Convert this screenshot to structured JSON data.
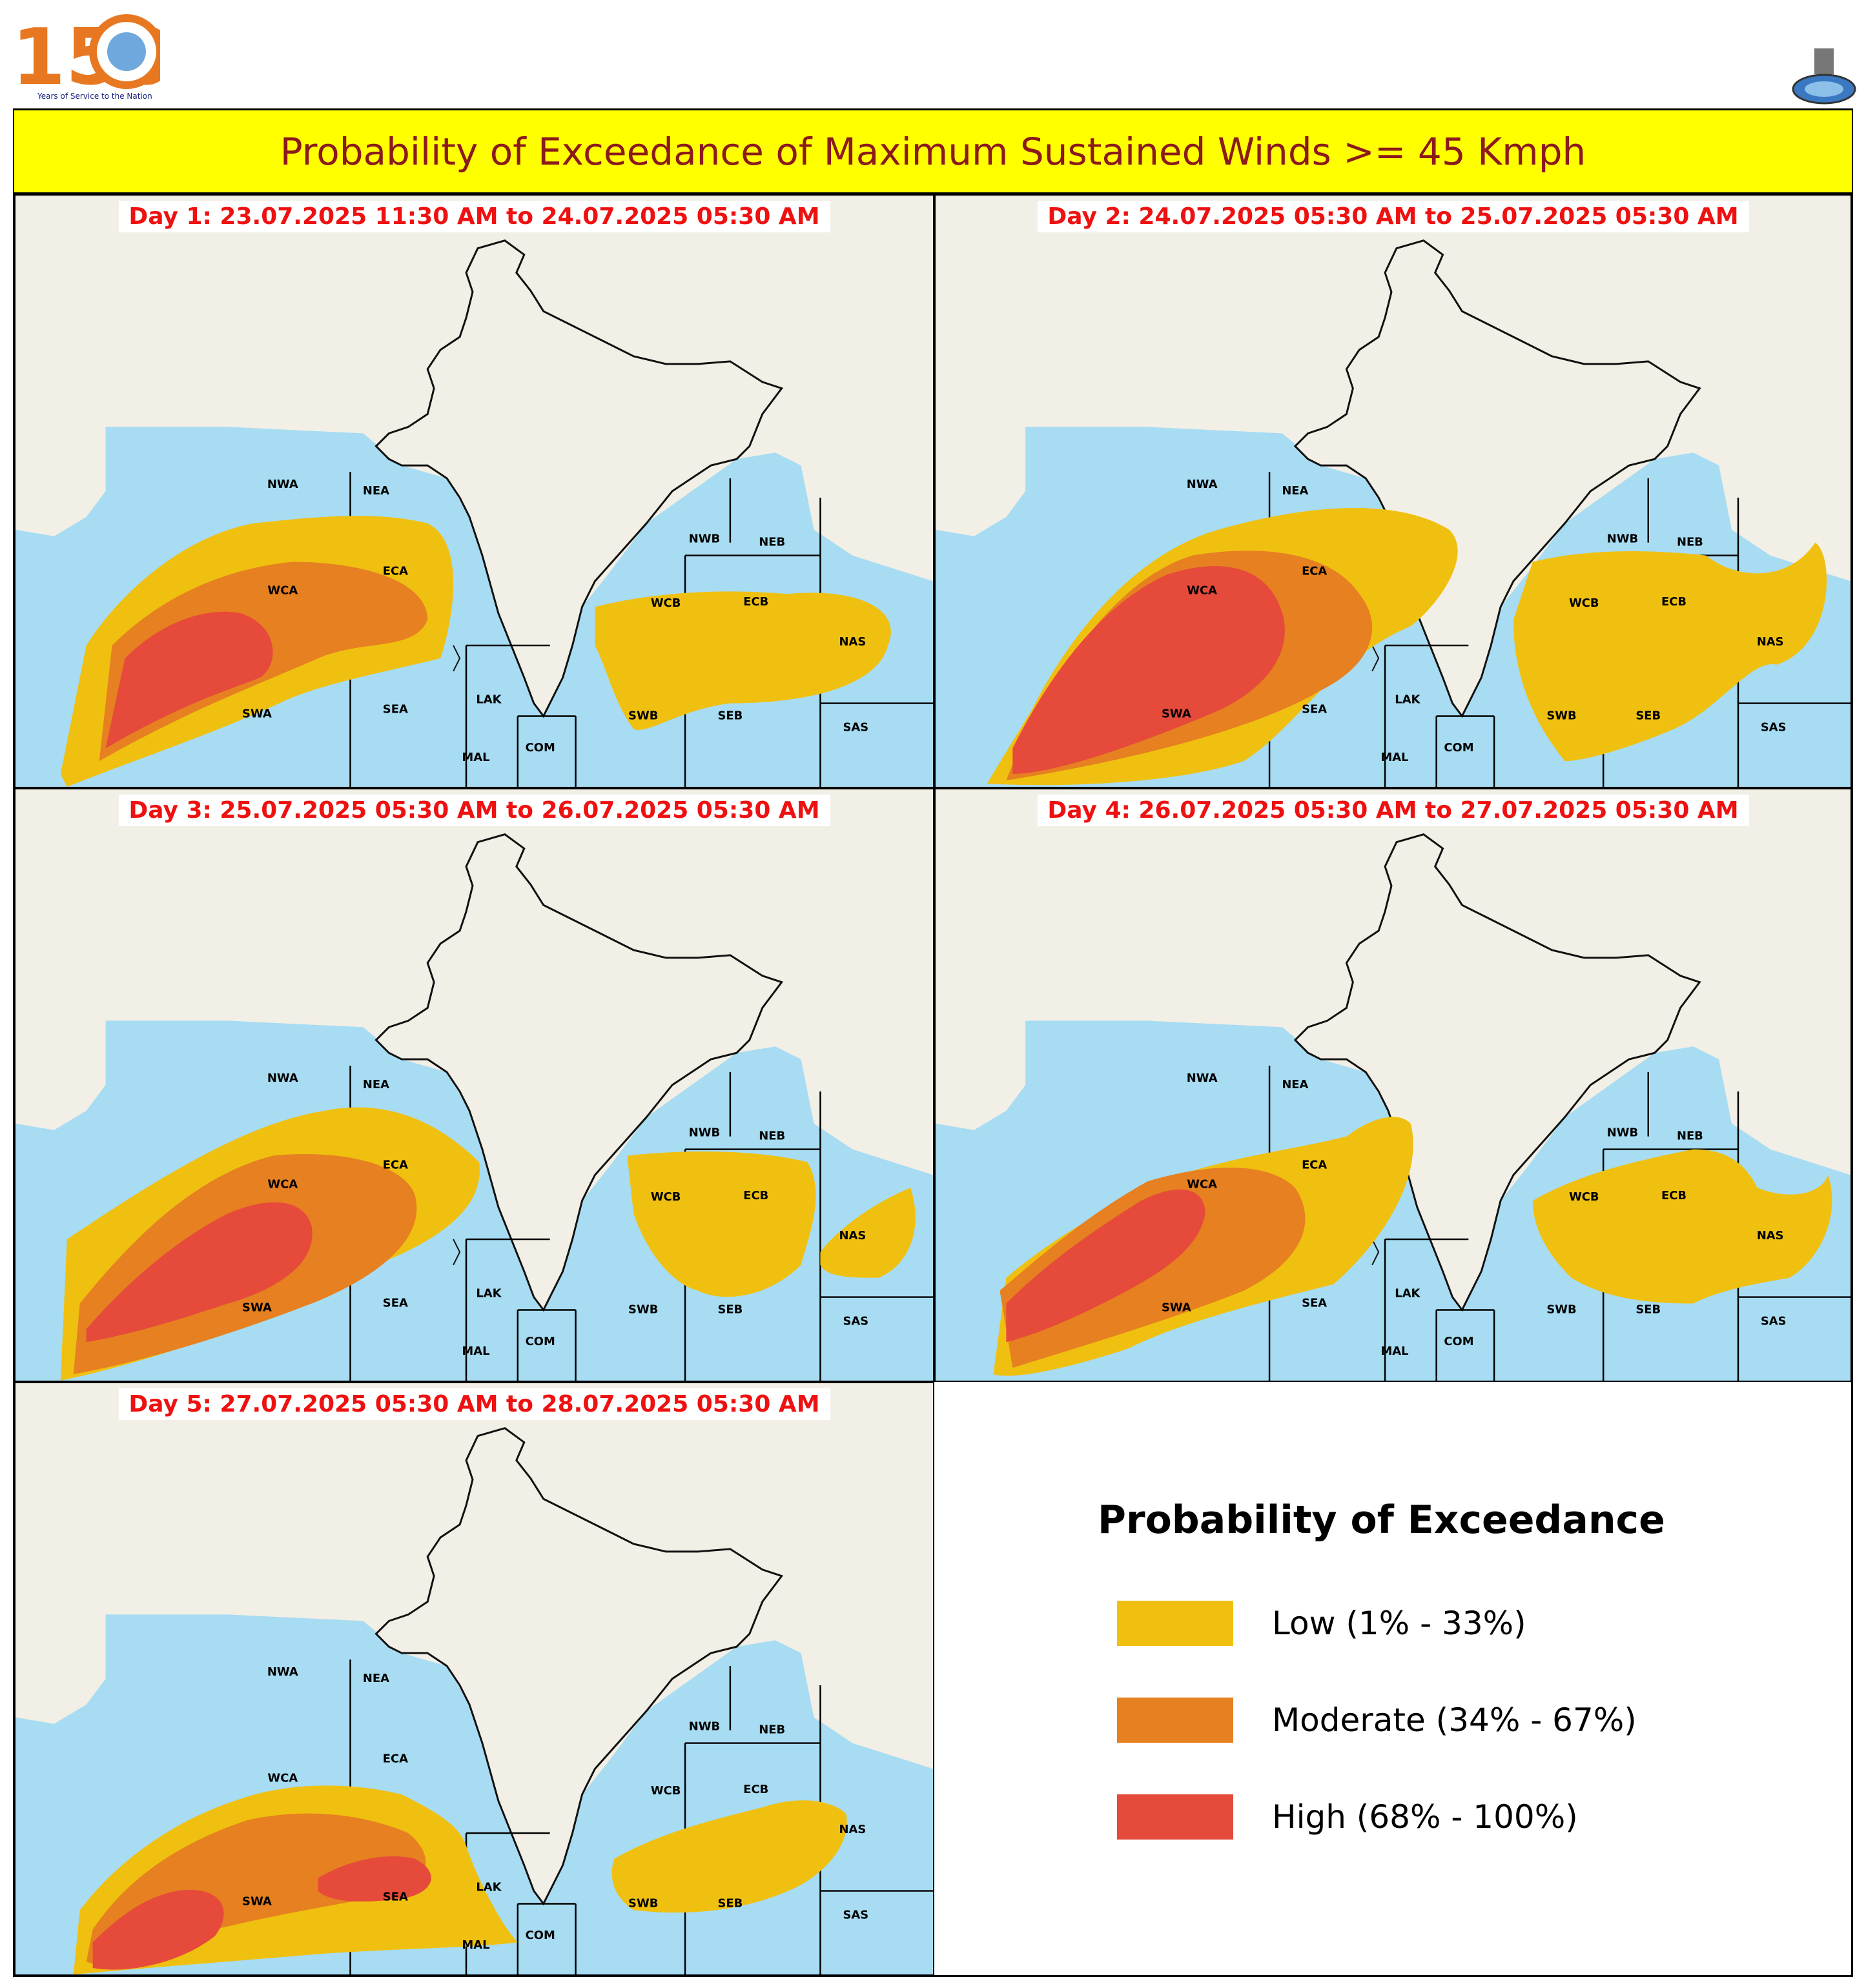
{
  "header": {
    "logo_number": "150",
    "logo_tagline": "Years of Service to the Nation",
    "title": "Probability of Exceedance of Maximum Sustained Winds >= 45 Kmph"
  },
  "colors": {
    "low": "#f0c010",
    "moderate": "#e68020",
    "high": "#e64a3a",
    "sea": "#a7dcf2",
    "land": "#f2efe6",
    "title_bg": "#ffff00",
    "title_text": "#8b1a1a",
    "day_label": "#ee1111"
  },
  "panels": [
    {
      "label": "Day 1: 23.07.2025 11:30 AM to 24.07.2025 05:30 AM"
    },
    {
      "label": "Day 2: 24.07.2025 05:30 AM to 25.07.2025 05:30 AM"
    },
    {
      "label": "Day 3: 25.07.2025 05:30 AM to 26.07.2025 05:30 AM"
    },
    {
      "label": "Day 4: 26.07.2025 05:30 AM to 27.07.2025 05:30 AM"
    },
    {
      "label": "Day 5: 27.07.2025 05:30 AM to 28.07.2025 05:30 AM"
    }
  ],
  "regions": [
    "NWA",
    "NEA",
    "WCA",
    "ECA",
    "SWA",
    "SEA",
    "LAK",
    "MAL",
    "COM",
    "NWB",
    "NEB",
    "WCB",
    "ECB",
    "SWB",
    "SEB",
    "NAS",
    "SAS"
  ],
  "legend": {
    "title": "Probability of Exceedance",
    "items": [
      {
        "label": "Low (1% - 33%)",
        "level": "low"
      },
      {
        "label": "Moderate (34% - 67%)",
        "level": "moderate"
      },
      {
        "label": "High (68% - 100%)",
        "level": "high"
      }
    ]
  }
}
